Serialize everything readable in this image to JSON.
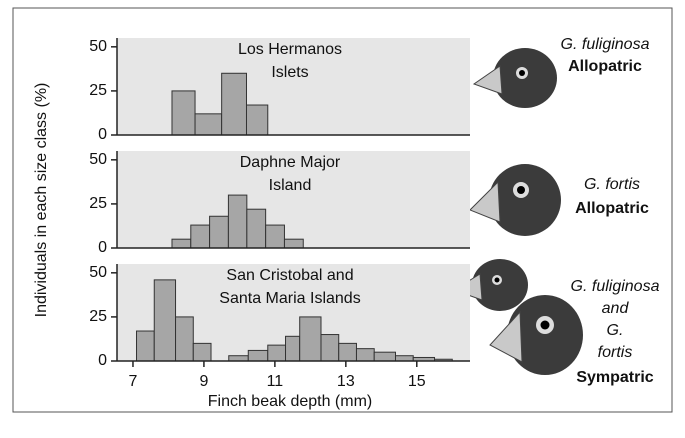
{
  "chart_data": [
    {
      "type": "histogram",
      "title": [
        "Los Hermanos",
        "Islets"
      ],
      "ylabel": "Individuals in each size class (%)",
      "bins": [
        8.1,
        8.75,
        9.5,
        10.2,
        10.8
      ],
      "values": [
        25,
        12,
        35,
        17
      ],
      "color": "#a6a6a6",
      "ylim": [
        0,
        55
      ],
      "yticks": [
        0,
        25,
        50
      ],
      "xlim": [
        6.55,
        16.5
      ],
      "species": [
        "G. fuliginosa"
      ],
      "status": "Allopatric"
    },
    {
      "type": "histogram",
      "title": [
        "Daphne Major",
        "Island"
      ],
      "bins": [
        8.1,
        8.63,
        9.16,
        9.69,
        10.21,
        10.74,
        11.27,
        11.8
      ],
      "values": [
        5,
        13,
        18,
        30,
        22,
        13,
        5
      ],
      "color": "#a6a6a6",
      "ylim": [
        0,
        55
      ],
      "yticks": [
        0,
        25,
        50
      ],
      "xlim": [
        6.55,
        16.5
      ],
      "species": [
        "G. fortis"
      ],
      "status": "Allopatric"
    },
    {
      "type": "histogram",
      "title": [
        "San Cristobal and",
        "Santa Maria Islands"
      ],
      "bins": [
        7.1,
        7.6,
        8.2,
        8.7,
        9.2,
        9.7,
        10.25,
        10.8,
        11.3,
        11.7,
        12.3,
        12.8,
        13.3,
        13.8,
        14.4,
        14.9,
        15.5,
        16.0
      ],
      "values": [
        17,
        46,
        25,
        10,
        0,
        3,
        6,
        9,
        14,
        25,
        15,
        10,
        7,
        5,
        3,
        2,
        1
      ],
      "color": "#a6a6a6",
      "ylim": [
        0,
        55
      ],
      "yticks": [
        0,
        25,
        50
      ],
      "xlim": [
        6.55,
        16.5
      ],
      "xticks": [
        7,
        9,
        11,
        13,
        15
      ],
      "xlabel": "Finch beak depth (mm)",
      "species": [
        "G. fuliginosa",
        "and",
        "G.",
        "fortis"
      ],
      "status": "Sympatric"
    }
  ]
}
